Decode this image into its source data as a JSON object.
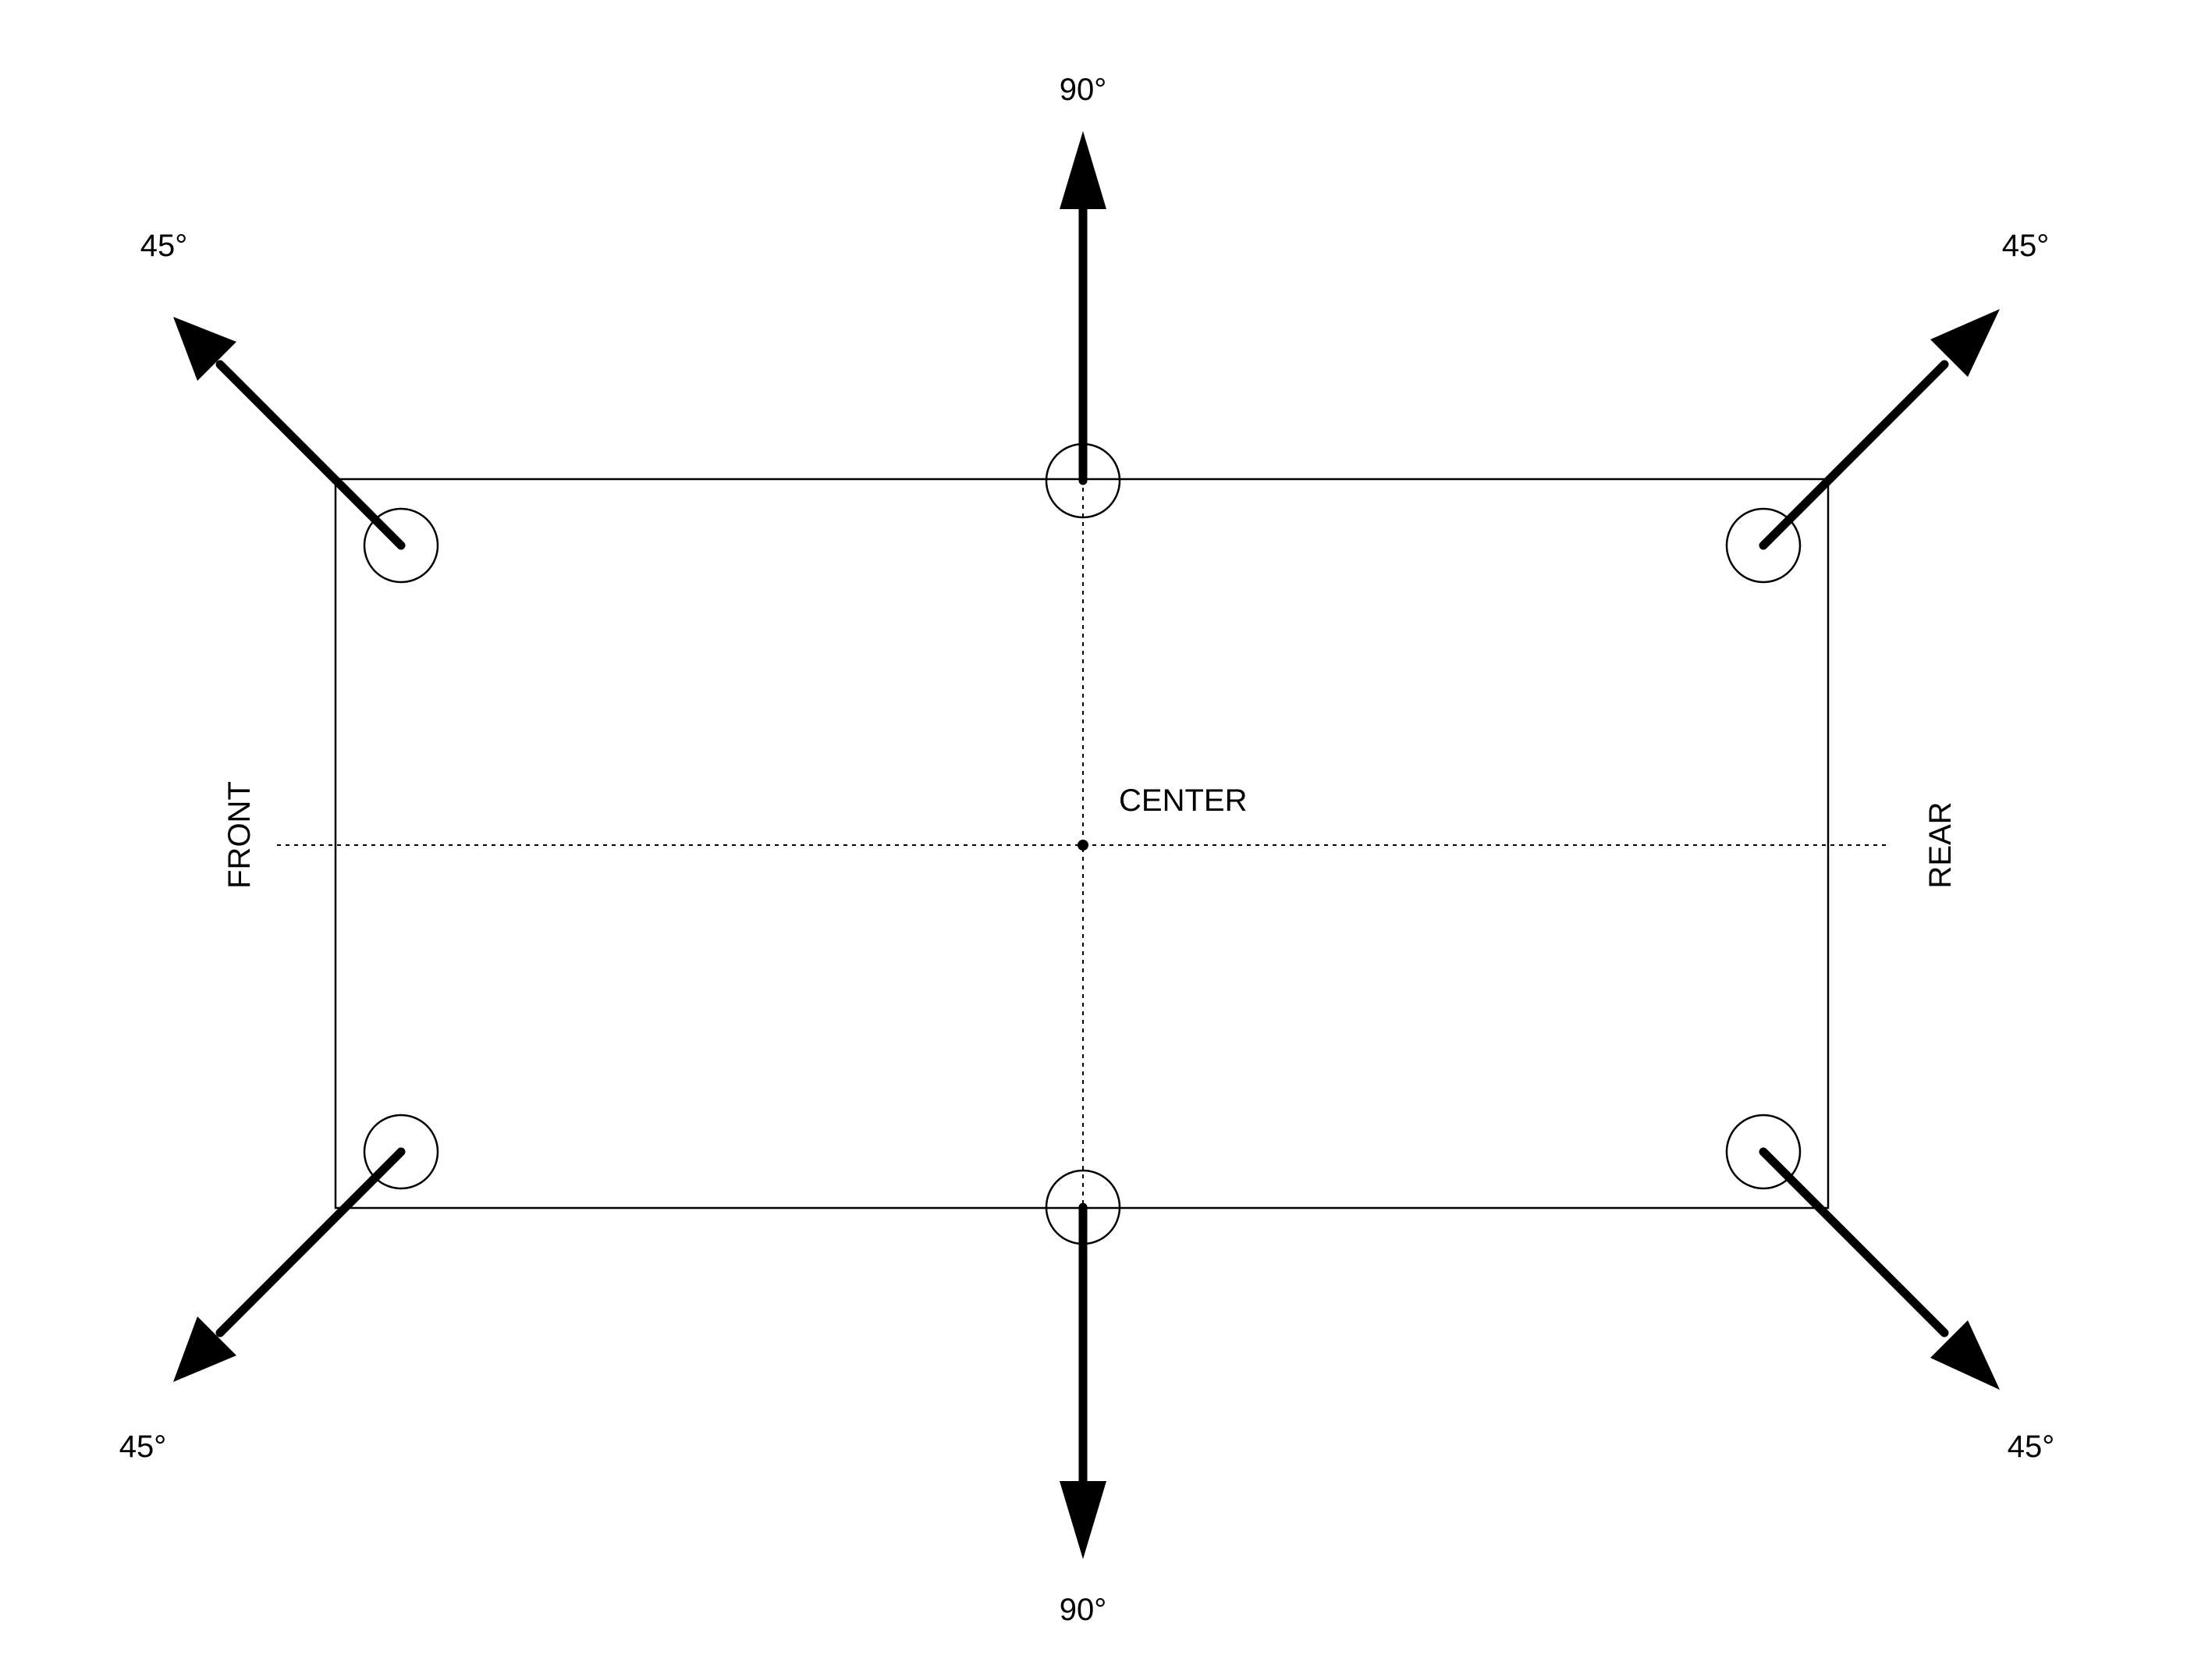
{
  "labels": {
    "top_angle": "90°",
    "bottom_angle": "90°",
    "top_left_angle": "45°",
    "top_right_angle": "45°",
    "bottom_left_angle": "45°",
    "bottom_right_angle": "45°",
    "center": "CENTER",
    "front": "FRONT",
    "rear": "REAR"
  },
  "colors": {
    "ink": "#000000",
    "background": "#ffffff"
  }
}
